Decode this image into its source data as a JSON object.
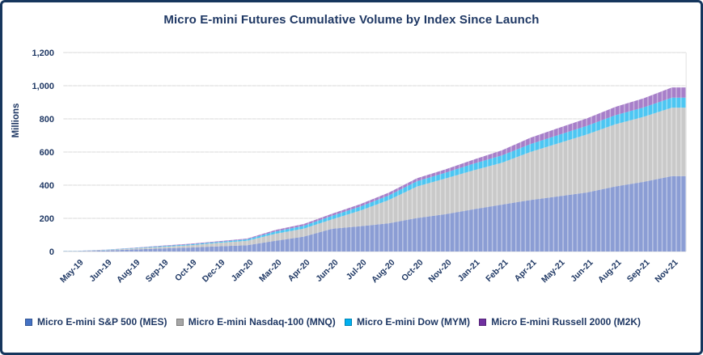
{
  "frame": {
    "border_color": "#16365D",
    "background": "#FFFFFF",
    "text_color": "#1F3864",
    "grid_color": "#D9D9D9"
  },
  "chart_data": {
    "type": "area",
    "stacked": true,
    "title": "Micro E-mini Futures Cumulative Volume by Index Since Launch",
    "xlabel": "",
    "ylabel": "Millions",
    "ylim": [
      0,
      1200
    ],
    "ytick_step": 200,
    "ytick_labels": [
      "0",
      "200",
      "400",
      "600",
      "800",
      "1,000",
      "1,200"
    ],
    "grid": true,
    "legend_position": "bottom",
    "categories": [
      "May-19",
      "Jun-19",
      "Aug-19",
      "Sep-19",
      "Oct-19",
      "Dec-19",
      "Jan-20",
      "Mar-20",
      "Apr-20",
      "Jun-20",
      "Jul-20",
      "Aug-20",
      "Oct-20",
      "Nov-20",
      "Jan-21",
      "Feb-21",
      "Apr-21",
      "May-21",
      "Jun-21",
      "Aug-21",
      "Sep-21",
      "Nov-21"
    ],
    "series": [
      {
        "name": "Micro E-mini S&P 500 (MES)",
        "legend_color": "#4472C4",
        "area_color": "#8B9DD4",
        "values": [
          2,
          6,
          12,
          18,
          24,
          31,
          38,
          65,
          90,
          137,
          152,
          170,
          202,
          225,
          255,
          283,
          310,
          333,
          356,
          392,
          420,
          455
        ]
      },
      {
        "name": "Micro E-mini Nasdaq-100 (MNQ)",
        "legend_color": "#A6A6A6",
        "area_color": "#C9C9C9",
        "values": [
          1,
          3,
          6,
          10,
          14,
          21,
          27,
          42,
          48,
          57,
          95,
          140,
          190,
          215,
          235,
          252,
          290,
          320,
          350,
          375,
          392,
          413
        ]
      },
      {
        "name": "Micro E-mini Dow (MYM)",
        "legend_color": "#00B0F0",
        "area_color": "#4DC6F2",
        "values": [
          0.5,
          1,
          2.5,
          4,
          5,
          6,
          8,
          14,
          17,
          21,
          24,
          28,
          32,
          35,
          40,
          45,
          48,
          50,
          52,
          55,
          57,
          60
        ]
      },
      {
        "name": "Micro E-mini Russell 2000 (M2K)",
        "legend_color": "#7030A0",
        "area_color": "#A77FC9",
        "values": [
          0.5,
          1,
          2,
          3,
          4,
          4,
          5,
          9,
          11,
          13,
          15,
          17,
          18,
          20,
          24,
          30,
          38,
          42,
          45,
          50,
          55,
          62
        ]
      }
    ]
  }
}
